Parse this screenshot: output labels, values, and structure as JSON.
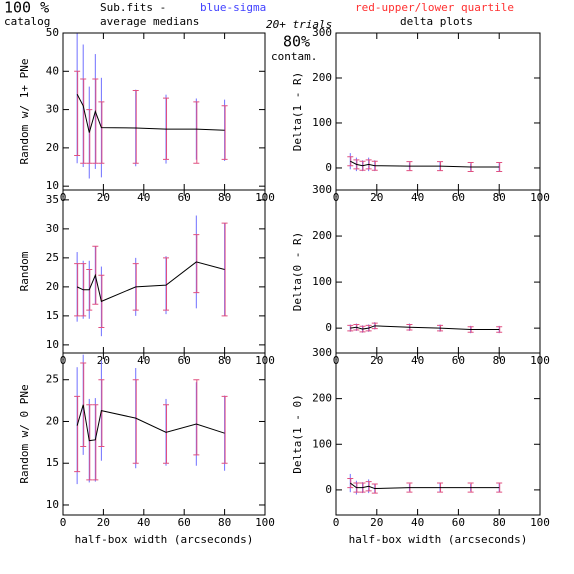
{
  "header": {
    "catalog_pct": "100 %",
    "catalog": "catalog",
    "fits": "Sub.fits  -",
    "medians": "average medians",
    "sigma": "blue-sigma",
    "quartile": "red-upper/lower quartile",
    "trials": "20+ trials",
    "contam_pct": "80%",
    "contam": "contam.",
    "delta": "delta plots"
  },
  "chart_data": [
    {
      "type": "errorbar",
      "ylabel": "Random w/ 1+ PNe",
      "x": [
        7,
        10,
        13,
        16,
        19,
        36,
        51,
        66,
        80
      ],
      "values": [
        34,
        31,
        24,
        29.5,
        25.3,
        25.2,
        24.9,
        24.9,
        24.6
      ],
      "sigma": [
        18,
        16,
        12,
        15,
        13,
        10,
        9,
        8,
        8
      ],
      "quartile_low": [
        18,
        16,
        16,
        16,
        16,
        16,
        17,
        16,
        17
      ],
      "quartile_high": [
        40,
        38,
        30,
        38,
        32,
        35,
        33,
        32,
        31
      ],
      "xlim": [
        0,
        100
      ],
      "xticks": [
        0,
        20,
        40,
        60,
        80,
        100
      ],
      "ylim": [
        9,
        50
      ],
      "yticks": [
        10,
        20,
        30,
        40,
        50
      ],
      "line_color": "#000000",
      "sigma_color": "#6f6fff",
      "quartile_color": "#e05080"
    },
    {
      "type": "errorbar",
      "ylabel": "Delta(1 - R)",
      "x": [
        7,
        10,
        13,
        16,
        19,
        36,
        51,
        66,
        80
      ],
      "values": [
        15,
        8,
        5,
        8,
        5,
        4,
        4,
        2,
        2
      ],
      "sigma": [
        18,
        15,
        12,
        15,
        12,
        8,
        10,
        8,
        10
      ],
      "quartile_low": [
        5,
        -2,
        -5,
        -2,
        -5,
        -6,
        -6,
        -8,
        -8
      ],
      "quartile_high": [
        25,
        18,
        15,
        18,
        15,
        14,
        14,
        12,
        12
      ],
      "xlim": [
        0,
        100
      ],
      "xticks": [
        0,
        20,
        40,
        60,
        80,
        100
      ],
      "ylim": [
        -49,
        300
      ],
      "yticks": [
        0,
        100,
        200,
        300
      ],
      "line_color": "#000000",
      "sigma_color": "#6f6fff",
      "quartile_color": "#e05080"
    },
    {
      "type": "errorbar",
      "ylabel": "Random",
      "x": [
        7,
        10,
        13,
        16,
        19,
        36,
        51,
        66,
        80
      ],
      "values": [
        20,
        19.5,
        19.5,
        22,
        17.5,
        20,
        20.3,
        24.3,
        23
      ],
      "sigma": [
        6,
        5,
        5,
        5,
        6,
        5,
        5,
        8,
        8
      ],
      "quartile_low": [
        15,
        15,
        16,
        17,
        13,
        16,
        16,
        19,
        15
      ],
      "quartile_high": [
        24,
        24,
        23,
        27,
        22,
        24,
        25,
        29,
        31
      ],
      "xlim": [
        0,
        100
      ],
      "xticks": [
        0,
        20,
        40,
        60,
        80,
        100
      ],
      "ylim": [
        8.6,
        36.7
      ],
      "yticks": [
        10,
        15,
        20,
        25,
        30,
        35
      ],
      "line_color": "#000000",
      "sigma_color": "#6f6fff",
      "quartile_color": "#e05080"
    },
    {
      "type": "errorbar",
      "ylabel": "Delta(0 - R)",
      "x": [
        7,
        10,
        13,
        16,
        19,
        36,
        51,
        66,
        80
      ],
      "values": [
        0,
        2,
        -2,
        0,
        5,
        2,
        0,
        -3,
        -3
      ],
      "sigma": [
        8,
        8,
        8,
        8,
        8,
        8,
        8,
        8,
        8
      ],
      "quartile_low": [
        -6,
        -4,
        -8,
        -6,
        -1,
        -4,
        -6,
        -9,
        -9
      ],
      "quartile_high": [
        6,
        8,
        4,
        6,
        11,
        8,
        6,
        3,
        3
      ],
      "xlim": [
        0,
        100
      ],
      "xticks": [
        0,
        20,
        40,
        60,
        80,
        100
      ],
      "ylim": [
        -54,
        300
      ],
      "yticks": [
        0,
        100,
        200,
        300
      ],
      "line_color": "#000000",
      "sigma_color": "#6f6fff",
      "quartile_color": "#e05080"
    },
    {
      "type": "errorbar",
      "ylabel": "Random w/ 0 PNe",
      "xlabel": "half-box width (arcseconds)",
      "x": [
        7,
        10,
        13,
        16,
        19,
        36,
        51,
        66,
        80
      ],
      "values": [
        19.5,
        22,
        17.7,
        17.8,
        21.3,
        20.4,
        18.7,
        19.7,
        18.6
      ],
      "sigma": [
        7,
        6,
        5,
        5,
        6,
        6,
        4,
        5,
        4.5
      ],
      "quartile_low": [
        14,
        17,
        13,
        13,
        17,
        15,
        15,
        16,
        15
      ],
      "quartile_high": [
        23,
        27,
        22,
        22,
        25,
        25,
        22,
        25,
        23
      ],
      "xlim": [
        0,
        100
      ],
      "xticks": [
        0,
        20,
        40,
        60,
        80,
        100
      ],
      "ylim": [
        8.8,
        28.2
      ],
      "yticks": [
        10,
        15,
        20,
        25
      ],
      "line_color": "#000000",
      "sigma_color": "#6f6fff",
      "quartile_color": "#e05080"
    },
    {
      "type": "errorbar",
      "ylabel": "Delta(1 - 0)",
      "xlabel": "half-box width (arcseconds)",
      "x": [
        7,
        10,
        13,
        16,
        19,
        36,
        51,
        66,
        80
      ],
      "values": [
        15,
        5,
        5,
        8,
        3,
        5,
        5,
        5,
        5
      ],
      "sigma": [
        20,
        15,
        12,
        15,
        10,
        8,
        10,
        8,
        10
      ],
      "quartile_low": [
        5,
        -5,
        -5,
        -2,
        -7,
        -5,
        -5,
        -5,
        -5
      ],
      "quartile_high": [
        25,
        15,
        15,
        18,
        13,
        15,
        15,
        15,
        15
      ],
      "xlim": [
        0,
        100
      ],
      "xticks": [
        0,
        20,
        40,
        60,
        80,
        100
      ],
      "ylim": [
        -55,
        300
      ],
      "yticks": [
        0,
        100,
        200,
        300
      ],
      "line_color": "#000000",
      "sigma_color": "#6f6fff",
      "quartile_color": "#e05080"
    }
  ]
}
